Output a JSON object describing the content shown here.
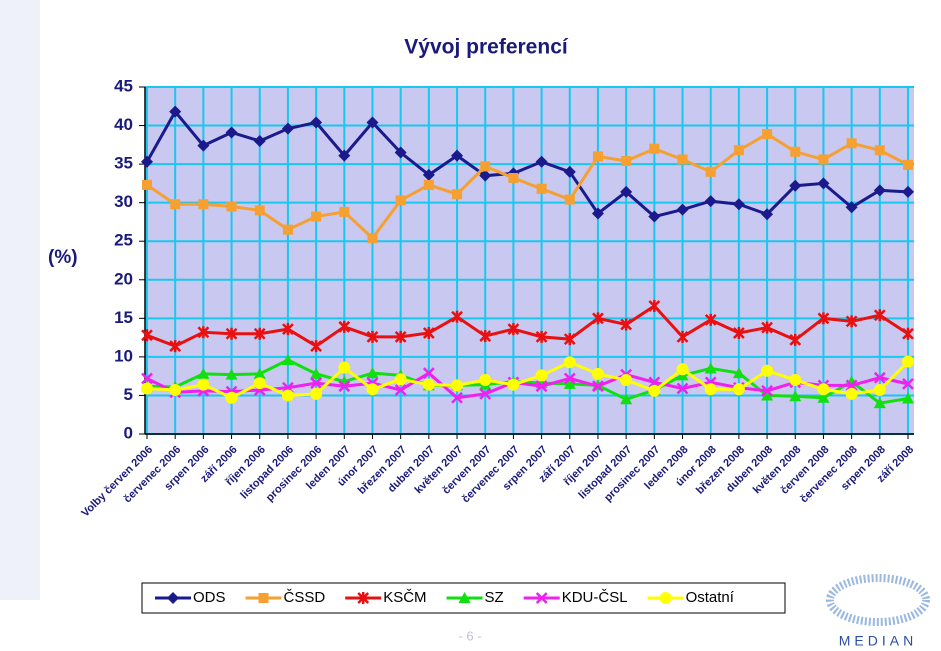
{
  "chart_data": {
    "type": "line",
    "title": "Vývoj preferencí",
    "y_label": "(%)",
    "categories": [
      "Volby červen 2006",
      "červenec 2006",
      "srpen 2006",
      "září 2006",
      "říjen 2006",
      "listopad 2006",
      "prosinec 2006",
      "leden 2007",
      "únor 2007",
      "březen 2007",
      "duben 2007",
      "květen 2007",
      "červen 2007",
      "červenec 2007",
      "srpen 2007",
      "září 2007",
      "říjen 2007",
      "listopad 2007",
      "prosinec 2007",
      "leden 2008",
      "únor 2008",
      "březen 2008",
      "duben 2008",
      "květen 2008",
      "červen 2008",
      "červenec 2008",
      "srpen 2008",
      "září 2008"
    ],
    "series": [
      {
        "name": "ODS",
        "color": "#1a1a8c",
        "marker": "diamond",
        "values": [
          35.3,
          41.8,
          37.4,
          39.1,
          38,
          39.6,
          40.4,
          36.1,
          40.4,
          36.5,
          33.6,
          36.1,
          33.5,
          33.8,
          35.3,
          34,
          28.6,
          31.4,
          28.2,
          29.1,
          30.2,
          29.8,
          28.5,
          32.2,
          32.5,
          29.4,
          31.6,
          31.4
        ]
      },
      {
        "name": "ČSSD",
        "color": "#f5a030",
        "marker": "square",
        "values": [
          32.3,
          29.8,
          29.8,
          29.5,
          29,
          26.5,
          28.2,
          28.8,
          25.4,
          30.3,
          32.3,
          31.1,
          34.7,
          33.2,
          31.8,
          30.4,
          36,
          35.4,
          37,
          35.6,
          34,
          36.8,
          38.9,
          36.6,
          35.6,
          37.7,
          36.8,
          34.9
        ]
      },
      {
        "name": "KSČM",
        "color": "#e81010",
        "marker": "star",
        "values": [
          12.8,
          11.4,
          13.2,
          13,
          13,
          13.6,
          11.4,
          13.9,
          12.6,
          12.6,
          13.1,
          15.2,
          12.7,
          13.6,
          12.6,
          12.3,
          15,
          14.2,
          16.6,
          12.6,
          14.8,
          13.1,
          13.8,
          12.2,
          15,
          14.6,
          15.4,
          13
        ]
      },
      {
        "name": "SZ",
        "color": "#10e010",
        "marker": "triangle",
        "values": [
          6.2,
          6.1,
          7.8,
          7.7,
          7.8,
          9.6,
          7.8,
          6.8,
          7.9,
          7.6,
          6.3,
          6.3,
          6.4,
          6.8,
          6.6,
          6.5,
          6.3,
          4.5,
          5.7,
          7.6,
          8.5,
          7.9,
          5,
          4.9,
          4.7,
          6.8,
          4,
          4.6
        ]
      },
      {
        "name": "KDU-ČSL",
        "color": "#f020f0",
        "marker": "cross",
        "values": [
          7.2,
          5.4,
          5.6,
          5.5,
          5.7,
          6,
          6.6,
          6.2,
          6.6,
          5.7,
          7.9,
          4.7,
          5.2,
          6.7,
          6.2,
          7.2,
          6.2,
          7.7,
          6.7,
          5.9,
          6.7,
          6,
          5.6,
          6.7,
          6.3,
          6.3,
          7.3,
          6.5
        ]
      },
      {
        "name": "Ostatní",
        "color": "#ffff00",
        "marker": "circle",
        "values": [
          5.9,
          5.7,
          6.4,
          4.7,
          6.6,
          5,
          5.2,
          8.6,
          5.8,
          7.1,
          6.4,
          6.3,
          7,
          6.4,
          7.6,
          9.3,
          7.8,
          7,
          5.6,
          8.4,
          5.8,
          5.8,
          8.2,
          7,
          5.8,
          5.2,
          5.7,
          9.4
        ]
      }
    ],
    "ylim": [
      0,
      45
    ],
    "yticks": [
      0,
      5,
      10,
      15,
      20,
      25,
      30,
      35,
      40,
      45
    ],
    "grid": true,
    "plot_background": "#c8c8f0",
    "grid_color": "#18c8f0"
  },
  "footer": {
    "page": "- 6 -",
    "logo": "MEDIAN"
  }
}
